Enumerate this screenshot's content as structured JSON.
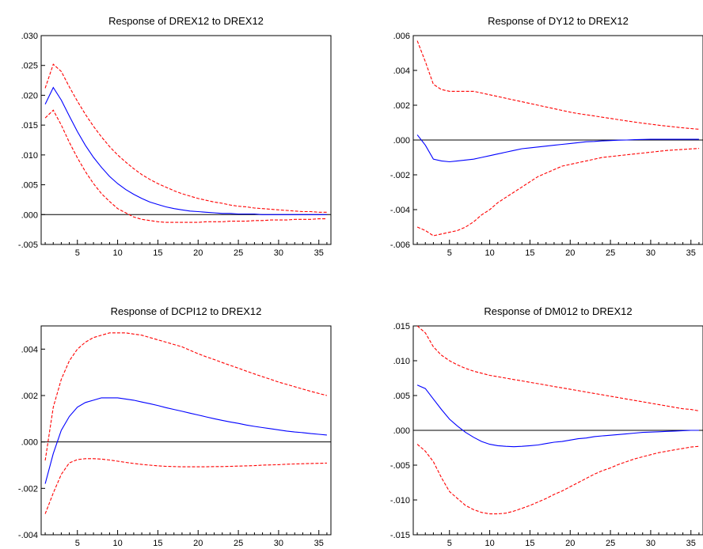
{
  "chart_data": [
    {
      "type": "line",
      "title": "Response of DREX12 to DREX12",
      "x": [
        1,
        2,
        3,
        4,
        5,
        6,
        7,
        8,
        9,
        10,
        11,
        12,
        13,
        14,
        15,
        16,
        17,
        18,
        19,
        20,
        21,
        22,
        23,
        24,
        25,
        26,
        27,
        28,
        29,
        30,
        31,
        32,
        33,
        34,
        35,
        36
      ],
      "ylim": [
        -0.005,
        0.03
      ],
      "yticks": [
        -0.005,
        0.0,
        0.005,
        0.01,
        0.015,
        0.02,
        0.025,
        0.03
      ],
      "ytick_labels": [
        "-.005",
        ".000",
        ".005",
        ".010",
        ".015",
        ".020",
        ".025",
        ".030"
      ],
      "xticks": [
        5,
        10,
        15,
        20,
        25,
        30,
        35
      ],
      "xtick_labels": [
        "5",
        "10",
        "15",
        "20",
        "25",
        "30",
        "35"
      ],
      "series": [
        {
          "role": "response",
          "color": "#0000ff",
          "values": [
            0.0185,
            0.0213,
            0.0192,
            0.0165,
            0.0139,
            0.0116,
            0.0096,
            0.0079,
            0.0064,
            0.0052,
            0.0042,
            0.0034,
            0.0027,
            0.0021,
            0.0017,
            0.0013,
            0.001,
            0.0008,
            0.0006,
            0.0005,
            0.0004,
            0.0003,
            0.0002,
            0.0002,
            0.0001,
            0.0001,
            0.0001,
            0.0,
            0.0,
            0.0,
            0.0,
            0.0,
            0.0,
            0.0,
            0.0,
            0.0
          ]
        },
        {
          "role": "upper",
          "color": "#ff0000",
          "values": [
            0.0212,
            0.0252,
            0.024,
            0.0214,
            0.019,
            0.0168,
            0.0148,
            0.013,
            0.0114,
            0.01,
            0.0088,
            0.0077,
            0.0067,
            0.0059,
            0.0052,
            0.0046,
            0.004,
            0.0035,
            0.0031,
            0.0027,
            0.0024,
            0.0021,
            0.0019,
            0.0016,
            0.0014,
            0.0013,
            0.0011,
            0.001,
            0.0009,
            0.0008,
            0.0007,
            0.0006,
            0.0005,
            0.0005,
            0.0004,
            0.0004
          ]
        },
        {
          "role": "lower",
          "color": "#ff0000",
          "values": [
            0.0162,
            0.0175,
            0.015,
            0.0121,
            0.0095,
            0.0072,
            0.0052,
            0.0035,
            0.0022,
            0.001,
            0.0003,
            -0.0004,
            -0.0008,
            -0.001,
            -0.0012,
            -0.0013,
            -0.0013,
            -0.0013,
            -0.0013,
            -0.0013,
            -0.0012,
            -0.0012,
            -0.0012,
            -0.0011,
            -0.0011,
            -0.0011,
            -0.001,
            -0.001,
            -0.0009,
            -0.0009,
            -0.0009,
            -0.0008,
            -0.0008,
            -0.0008,
            -0.0007,
            -0.0007
          ]
        }
      ]
    },
    {
      "type": "line",
      "title": "Response of DY12 to DREX12",
      "x": [
        1,
        2,
        3,
        4,
        5,
        6,
        7,
        8,
        9,
        10,
        11,
        12,
        13,
        14,
        15,
        16,
        17,
        18,
        19,
        20,
        21,
        22,
        23,
        24,
        25,
        26,
        27,
        28,
        29,
        30,
        31,
        32,
        33,
        34,
        35,
        36
      ],
      "ylim": [
        -0.006,
        0.006
      ],
      "yticks": [
        -0.006,
        -0.004,
        -0.002,
        0.0,
        0.002,
        0.004,
        0.006
      ],
      "ytick_labels": [
        "-.006",
        "-.004",
        "-.002",
        ".000",
        ".002",
        ".004",
        ".006"
      ],
      "xticks": [
        5,
        10,
        15,
        20,
        25,
        30,
        35
      ],
      "xtick_labels": [
        "5",
        "10",
        "15",
        "20",
        "25",
        "30",
        "35"
      ],
      "series": [
        {
          "role": "response",
          "color": "#0000ff",
          "values": [
            0.0003,
            -0.0003,
            -0.0011,
            -0.0012,
            -0.00125,
            -0.0012,
            -0.00115,
            -0.0011,
            -0.001,
            -0.0009,
            -0.0008,
            -0.0007,
            -0.0006,
            -0.0005,
            -0.00045,
            -0.0004,
            -0.00035,
            -0.0003,
            -0.00025,
            -0.0002,
            -0.00015,
            -0.0001,
            -8e-05,
            -5e-05,
            -3e-05,
            -1e-05,
            0.0,
            2e-05,
            3e-05,
            4e-05,
            4e-05,
            4e-05,
            4e-05,
            4e-05,
            4e-05,
            4e-05
          ]
        },
        {
          "role": "upper",
          "color": "#ff0000",
          "values": [
            0.0057,
            0.0045,
            0.0032,
            0.0029,
            0.0028,
            0.0028,
            0.0028,
            0.0028,
            0.0027,
            0.0026,
            0.0025,
            0.0024,
            0.0023,
            0.0022,
            0.0021,
            0.002,
            0.0019,
            0.0018,
            0.0017,
            0.0016,
            0.00152,
            0.00145,
            0.00138,
            0.00131,
            0.00124,
            0.00117,
            0.0011,
            0.00103,
            0.00097,
            0.00091,
            0.00085,
            0.0008,
            0.00075,
            0.0007,
            0.00066,
            0.00062
          ]
        },
        {
          "role": "lower",
          "color": "#ff0000",
          "values": [
            -0.005,
            -0.0052,
            -0.0055,
            -0.0054,
            -0.0053,
            -0.0052,
            -0.005,
            -0.0047,
            -0.0043,
            -0.004,
            -0.0036,
            -0.0033,
            -0.003,
            -0.0027,
            -0.0024,
            -0.0021,
            -0.0019,
            -0.0017,
            -0.0015,
            -0.0014,
            -0.0013,
            -0.0012,
            -0.0011,
            -0.001,
            -0.00095,
            -0.0009,
            -0.00085,
            -0.0008,
            -0.00075,
            -0.0007,
            -0.00065,
            -0.0006,
            -0.00057,
            -0.00054,
            -0.00051,
            -0.00048
          ]
        }
      ]
    },
    {
      "type": "line",
      "title": "Response of DCPI12 to DREX12",
      "x": [
        1,
        2,
        3,
        4,
        5,
        6,
        7,
        8,
        9,
        10,
        11,
        12,
        13,
        14,
        15,
        16,
        17,
        18,
        19,
        20,
        21,
        22,
        23,
        24,
        25,
        26,
        27,
        28,
        29,
        30,
        31,
        32,
        33,
        34,
        35,
        36
      ],
      "ylim": [
        -0.004,
        0.005
      ],
      "yticks": [
        -0.004,
        -0.002,
        0.0,
        0.002,
        0.004
      ],
      "ytick_labels": [
        "-.004",
        "-.002",
        ".000",
        ".002",
        ".004"
      ],
      "xticks": [
        5,
        10,
        15,
        20,
        25,
        30,
        35
      ],
      "xtick_labels": [
        "5",
        "10",
        "15",
        "20",
        "25",
        "30",
        "35"
      ],
      "series": [
        {
          "role": "response",
          "color": "#0000ff",
          "values": [
            -0.0018,
            -0.0005,
            0.0005,
            0.0011,
            0.0015,
            0.0017,
            0.0018,
            0.0019,
            0.0019,
            0.0019,
            0.00185,
            0.0018,
            0.00172,
            0.00165,
            0.00157,
            0.00148,
            0.0014,
            0.00132,
            0.00124,
            0.00116,
            0.00108,
            0.001,
            0.00093,
            0.00086,
            0.0008,
            0.00073,
            0.00067,
            0.00062,
            0.00057,
            0.00052,
            0.00047,
            0.00043,
            0.0004,
            0.00036,
            0.00033,
            0.0003
          ]
        },
        {
          "role": "upper",
          "color": "#ff0000",
          "values": [
            -0.0008,
            0.0015,
            0.0027,
            0.0035,
            0.004,
            0.0043,
            0.0045,
            0.0046,
            0.0047,
            0.0047,
            0.0047,
            0.00465,
            0.0046,
            0.0045,
            0.0044,
            0.0043,
            0.0042,
            0.0041,
            0.00395,
            0.0038,
            0.00367,
            0.00355,
            0.00342,
            0.0033,
            0.00318,
            0.00305,
            0.00293,
            0.00281,
            0.0027,
            0.00258,
            0.00248,
            0.00238,
            0.00228,
            0.00218,
            0.00209,
            0.002
          ]
        },
        {
          "role": "lower",
          "color": "#ff0000",
          "values": [
            -0.0031,
            -0.0022,
            -0.0014,
            -0.0009,
            -0.00076,
            -0.00072,
            -0.00072,
            -0.00074,
            -0.00078,
            -0.00083,
            -0.00088,
            -0.00093,
            -0.00097,
            -0.001,
            -0.00103,
            -0.00105,
            -0.00106,
            -0.00107,
            -0.00107,
            -0.00107,
            -0.00107,
            -0.00106,
            -0.00106,
            -0.00105,
            -0.00104,
            -0.00103,
            -0.00102,
            -0.001,
            -0.00099,
            -0.00098,
            -0.00096,
            -0.00095,
            -0.00094,
            -0.00093,
            -0.00092,
            -0.00091
          ]
        }
      ]
    },
    {
      "type": "line",
      "title": "Response of DM012 to DREX12",
      "x": [
        1,
        2,
        3,
        4,
        5,
        6,
        7,
        8,
        9,
        10,
        11,
        12,
        13,
        14,
        15,
        16,
        17,
        18,
        19,
        20,
        21,
        22,
        23,
        24,
        25,
        26,
        27,
        28,
        29,
        30,
        31,
        32,
        33,
        34,
        35,
        36
      ],
      "ylim": [
        -0.015,
        0.015
      ],
      "yticks": [
        -0.015,
        -0.01,
        -0.005,
        0.0,
        0.005,
        0.01,
        0.015
      ],
      "ytick_labels": [
        "-.015",
        "-.010",
        "-.005",
        ".000",
        ".005",
        ".010",
        ".015"
      ],
      "xticks": [
        5,
        10,
        15,
        20,
        25,
        30,
        35
      ],
      "xtick_labels": [
        "5",
        "10",
        "15",
        "20",
        "25",
        "30",
        "35"
      ],
      "series": [
        {
          "role": "response",
          "color": "#0000ff",
          "values": [
            0.0065,
            0.006,
            0.0045,
            0.003,
            0.0016,
            0.0006,
            -0.0003,
            -0.001,
            -0.0016,
            -0.002,
            -0.0022,
            -0.0023,
            -0.00235,
            -0.0023,
            -0.0022,
            -0.0021,
            -0.0019,
            -0.0017,
            -0.0016,
            -0.0014,
            -0.0012,
            -0.0011,
            -0.0009,
            -0.0008,
            -0.0007,
            -0.0006,
            -0.0005,
            -0.0004,
            -0.0003,
            -0.00025,
            -0.0002,
            -0.00015,
            -0.0001,
            -5e-05,
            0.0,
            0.0
          ]
        },
        {
          "role": "upper",
          "color": "#ff0000",
          "values": [
            0.015,
            0.014,
            0.012,
            0.0108,
            0.01,
            0.0094,
            0.0089,
            0.0085,
            0.0082,
            0.0079,
            0.0077,
            0.0075,
            0.0073,
            0.0071,
            0.0069,
            0.0067,
            0.0065,
            0.0063,
            0.0061,
            0.0059,
            0.0057,
            0.0055,
            0.0053,
            0.0051,
            0.0049,
            0.0047,
            0.0045,
            0.0043,
            0.0041,
            0.0039,
            0.0037,
            0.0035,
            0.0033,
            0.0031,
            0.003,
            0.0028
          ]
        },
        {
          "role": "lower",
          "color": "#ff0000",
          "values": [
            -0.002,
            -0.003,
            -0.0045,
            -0.0068,
            -0.0088,
            -0.0098,
            -0.0108,
            -0.0114,
            -0.0118,
            -0.012,
            -0.012,
            -0.0119,
            -0.0116,
            -0.0112,
            -0.0108,
            -0.0103,
            -0.0098,
            -0.0092,
            -0.0087,
            -0.0081,
            -0.0075,
            -0.0069,
            -0.0063,
            -0.0058,
            -0.0054,
            -0.0049,
            -0.0045,
            -0.0041,
            -0.0038,
            -0.0035,
            -0.0032,
            -0.003,
            -0.0028,
            -0.0026,
            -0.0024,
            -0.0023
          ]
        }
      ]
    }
  ]
}
